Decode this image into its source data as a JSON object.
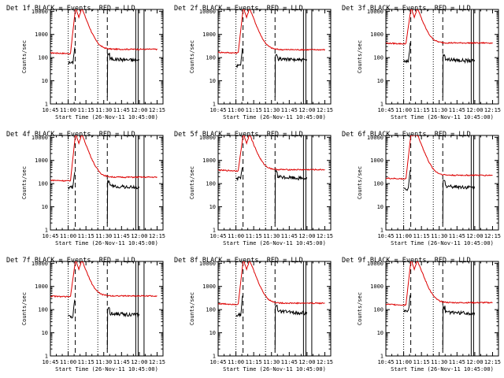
{
  "chart_data": [
    {
      "type": "line",
      "panel": "det-1f",
      "title": "Det 1f BLACK = Events, RED = LLD",
      "xlabel": "Start Time (26-Nov-11 10:45:00)",
      "ylabel": "Counts/sec",
      "xlim": [
        0,
        95
      ],
      "ylim": [
        1,
        12000
      ],
      "yscale": "log",
      "xticks": [
        "10:45",
        "11:00",
        "11:15",
        "11:30",
        "11:45",
        "12:00",
        "12:15"
      ],
      "yticks": [
        "1",
        "10",
        "100",
        "1000",
        "10000"
      ],
      "series": [
        {
          "name": "Events",
          "color": "#000000",
          "base": 60,
          "peak": 300,
          "after": 90
        },
        {
          "name": "LLD",
          "color": "#dd0000",
          "base": 160,
          "peak": 12000,
          "after": 230,
          "bumps": true
        }
      ]
    },
    {
      "type": "line",
      "panel": "det-2f",
      "title": "Det 2f BLACK = Events, RED = LLD",
      "xlabel": "Start Time (26-Nov-11 10:45:00)",
      "ylabel": "Counts/sec",
      "xlim": [
        0,
        95
      ],
      "ylim": [
        1,
        12000
      ],
      "yscale": "log",
      "xticks": [
        "10:45",
        "11:00",
        "11:15",
        "11:30",
        "11:45",
        "12:00",
        "12:15"
      ],
      "yticks": [
        "1",
        "10",
        "100",
        "1000",
        "10000"
      ],
      "series": [
        {
          "name": "Events",
          "color": "#000000",
          "base": 45,
          "peak": 300,
          "after": 90
        },
        {
          "name": "LLD",
          "color": "#dd0000",
          "base": 170,
          "peak": 12000,
          "after": 220,
          "bumps": true
        }
      ]
    },
    {
      "type": "line",
      "panel": "det-3f",
      "title": "Det 3f BLACK = Events, RED = LLD",
      "xlabel": "Start Time (26-Nov-11 10:45:00)",
      "ylabel": "Counts/sec",
      "xlim": [
        0,
        95
      ],
      "ylim": [
        1,
        12000
      ],
      "yscale": "log",
      "xticks": [
        "10:45",
        "11:00",
        "11:15",
        "11:30",
        "11:45",
        "12:00",
        "12:15"
      ],
      "yticks": [
        "1",
        "10",
        "100",
        "1000",
        "10000"
      ],
      "series": [
        {
          "name": "Events",
          "color": "#000000",
          "base": 70,
          "peak": 400,
          "after": 85
        },
        {
          "name": "LLD",
          "color": "#dd0000",
          "base": 420,
          "peak": 12000,
          "after": 430,
          "bumps": true
        }
      ]
    },
    {
      "type": "line",
      "panel": "det-4f",
      "title": "Det 4f BLACK = Events, RED = LLD",
      "xlabel": "Start Time (26-Nov-11 10:45:00)",
      "ylabel": "Counts/sec",
      "xlim": [
        0,
        95
      ],
      "ylim": [
        1,
        12000
      ],
      "yscale": "log",
      "xticks": [
        "10:45",
        "11:00",
        "11:15",
        "11:30",
        "11:45",
        "12:00",
        "12:15"
      ],
      "yticks": [
        "1",
        "10",
        "100",
        "1000",
        "10000"
      ],
      "series": [
        {
          "name": "Events",
          "color": "#000000",
          "base": 70,
          "peak": 300,
          "after": 80
        },
        {
          "name": "LLD",
          "color": "#dd0000",
          "base": 140,
          "peak": 12000,
          "after": 190,
          "bumps": true
        }
      ]
    },
    {
      "type": "line",
      "panel": "det-5f",
      "title": "Det 5f BLACK = Events, RED = LLD",
      "xlabel": "Start Time (26-Nov-11 10:45:00)",
      "ylabel": "Counts/sec",
      "xlim": [
        0,
        95
      ],
      "ylim": [
        1,
        12000
      ],
      "yscale": "log",
      "xticks": [
        "10:45",
        "11:00",
        "11:15",
        "11:30",
        "11:45",
        "12:00",
        "12:15"
      ],
      "yticks": [
        "1",
        "10",
        "100",
        "1000",
        "10000"
      ],
      "series": [
        {
          "name": "Events",
          "color": "#000000",
          "base": 170,
          "peak": 500,
          "after": 200
        },
        {
          "name": "LLD",
          "color": "#dd0000",
          "base": 380,
          "peak": 12000,
          "after": 400,
          "bumps": true
        }
      ]
    },
    {
      "type": "line",
      "panel": "det-6f",
      "title": "Det 6f BLACK = Events, RED = LLD",
      "xlabel": "Start Time (26-Nov-11 10:45:00)",
      "ylabel": "Counts/sec",
      "xlim": [
        0,
        95
      ],
      "ylim": [
        1,
        12000
      ],
      "yscale": "log",
      "xticks": [
        "10:45",
        "11:00",
        "11:15",
        "11:30",
        "11:45",
        "12:00",
        "12:15"
      ],
      "yticks": [
        "1",
        "10",
        "100",
        "1000",
        "10000"
      ],
      "series": [
        {
          "name": "Events",
          "color": "#000000",
          "base": 60,
          "peak": 400,
          "after": 80
        },
        {
          "name": "LLD",
          "color": "#dd0000",
          "base": 170,
          "peak": 12000,
          "after": 230,
          "bumps": false
        }
      ]
    },
    {
      "type": "line",
      "panel": "det-7f",
      "title": "Det 7f BLACK = Events, RED = LLD",
      "xlabel": "Start Time (26-Nov-11 10:45:00)",
      "ylabel": "Counts/sec",
      "xlim": [
        0,
        95
      ],
      "ylim": [
        1,
        12000
      ],
      "yscale": "log",
      "xticks": [
        "10:45",
        "11:00",
        "11:15",
        "11:30",
        "11:45",
        "12:00",
        "12:15"
      ],
      "yticks": [
        "1",
        "10",
        "100",
        "1000",
        "10000"
      ],
      "series": [
        {
          "name": "Events",
          "color": "#000000",
          "base": 50,
          "peak": 300,
          "after": 70
        },
        {
          "name": "LLD",
          "color": "#dd0000",
          "base": 380,
          "peak": 12000,
          "after": 390,
          "bumps": true
        }
      ]
    },
    {
      "type": "line",
      "panel": "det-8f",
      "title": "Det 8f BLACK = Events, RED = LLD",
      "xlabel": "Start Time (26-Nov-11 10:45:00)",
      "ylabel": "Counts/sec",
      "xlim": [
        0,
        95
      ],
      "ylim": [
        1,
        12000
      ],
      "yscale": "log",
      "xticks": [
        "10:45",
        "11:00",
        "11:15",
        "11:30",
        "11:45",
        "12:00",
        "12:15"
      ],
      "yticks": [
        "1",
        "10",
        "100",
        "1000",
        "10000"
      ],
      "series": [
        {
          "name": "Events",
          "color": "#000000",
          "base": 60,
          "peak": 350,
          "after": 85
        },
        {
          "name": "LLD",
          "color": "#dd0000",
          "base": 180,
          "peak": 12000,
          "after": 190,
          "bumps": true
        }
      ]
    },
    {
      "type": "line",
      "panel": "det-9f",
      "title": "Det 9f BLACK = Events, RED = LLD",
      "xlabel": "Start Time (26-Nov-11 10:45:00)",
      "ylabel": "Counts/sec",
      "xlim": [
        0,
        95
      ],
      "ylim": [
        1,
        12000
      ],
      "yscale": "log",
      "xticks": [
        "10:45",
        "11:00",
        "11:15",
        "11:30",
        "11:45",
        "12:00",
        "12:15"
      ],
      "yticks": [
        "1",
        "10",
        "100",
        "1000",
        "10000"
      ],
      "series": [
        {
          "name": "Events",
          "color": "#000000",
          "base": 90,
          "peak": 400,
          "after": 80
        },
        {
          "name": "LLD",
          "color": "#dd0000",
          "base": 170,
          "peak": 12000,
          "after": 200,
          "bumps": true
        }
      ]
    }
  ],
  "markers": {
    "dotted_minutes": [
      15,
      40
    ],
    "dashed_minutes": [
      21,
      48
    ],
    "solid_minutes": [
      72,
      74,
      79
    ]
  }
}
